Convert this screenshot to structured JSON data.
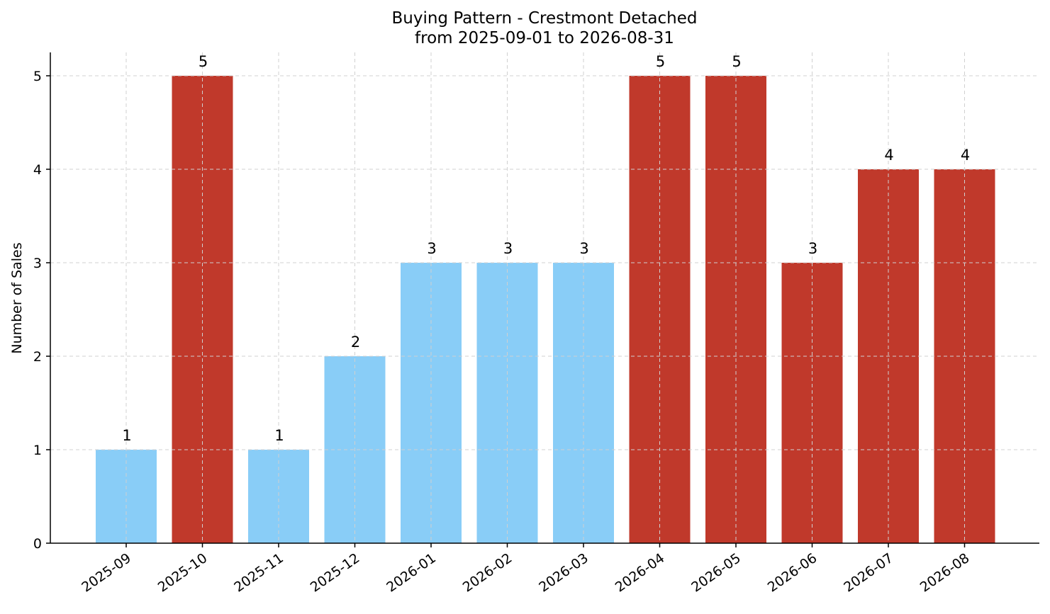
{
  "chart_data": {
    "type": "bar",
    "title": "Buying Pattern - Crestmont Detached",
    "subtitle": "from 2025-09-01 to 2026-08-31",
    "xlabel": "",
    "ylabel": "Number of Sales",
    "categories": [
      "2025-09",
      "2025-10",
      "2025-11",
      "2025-12",
      "2026-01",
      "2026-02",
      "2026-03",
      "2026-04",
      "2026-05",
      "2026-06",
      "2026-07",
      "2026-08"
    ],
    "values": [
      1,
      5,
      1,
      2,
      3,
      3,
      3,
      5,
      5,
      3,
      4,
      4
    ],
    "bar_colors": [
      "#89cdf7",
      "#c0392b",
      "#89cdf7",
      "#89cdf7",
      "#89cdf7",
      "#89cdf7",
      "#89cdf7",
      "#c0392b",
      "#c0392b",
      "#c0392b",
      "#c0392b",
      "#c0392b"
    ],
    "yticks": [
      0,
      1,
      2,
      3,
      4,
      5
    ],
    "ylim": [
      0,
      5.25
    ],
    "grid": true,
    "legend": "none"
  }
}
